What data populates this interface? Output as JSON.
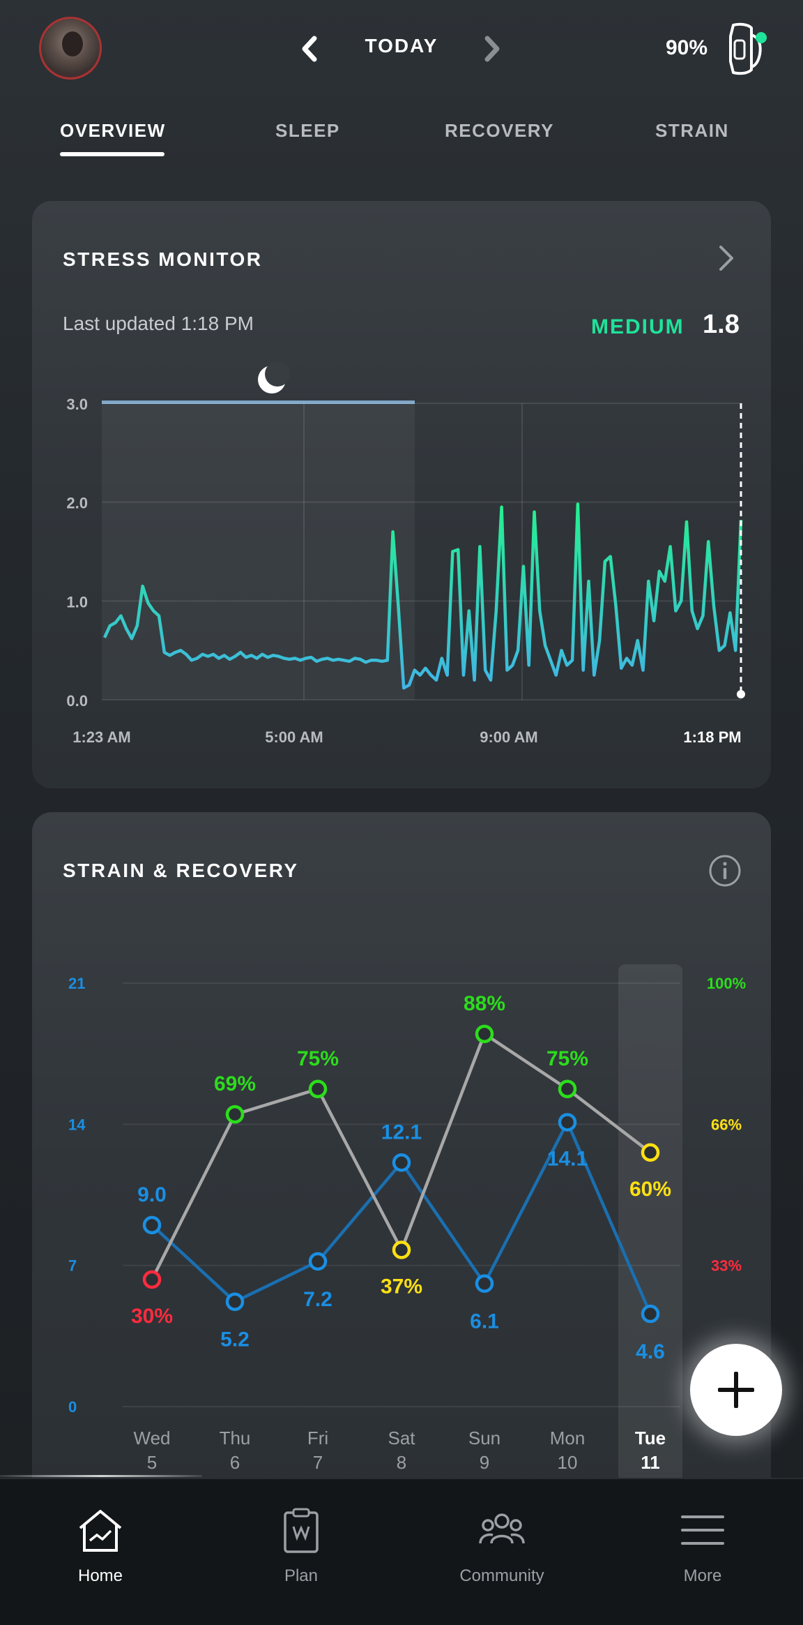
{
  "header": {
    "title": "TODAY",
    "battery": "90%"
  },
  "tabs": [
    {
      "label": "OVERVIEW",
      "active": true
    },
    {
      "label": "SLEEP",
      "active": false
    },
    {
      "label": "RECOVERY",
      "active": false
    },
    {
      "label": "STRAIN",
      "active": false
    }
  ],
  "stress": {
    "title": "STRESS MONITOR",
    "last_updated": "Last updated 1:18 PM",
    "level": "MEDIUM",
    "value": "1.8",
    "level_color": "#1fe39a",
    "chart_data": {
      "type": "line",
      "y_ticks": [
        "3.0",
        "2.0",
        "1.0",
        "0.0"
      ],
      "x_ticks": [
        "1:23 AM",
        "5:00 AM",
        "9:00 AM",
        "1:18 PM"
      ],
      "ylim": [
        0,
        3
      ],
      "sleep_band": {
        "from": "1:23 AM",
        "to": "7:40 AM"
      },
      "series": [
        {
          "values": [
            0.63,
            0.75,
            0.78,
            0.85,
            0.72,
            0.62,
            0.75,
            1.15,
            0.98,
            0.9,
            0.85,
            0.48,
            0.45,
            0.48,
            0.5,
            0.46,
            0.4,
            0.42,
            0.46,
            0.44,
            0.46,
            0.42,
            0.45,
            0.41,
            0.44,
            0.48,
            0.43,
            0.45,
            0.42,
            0.46,
            0.43,
            0.45,
            0.44,
            0.42,
            0.41,
            0.42,
            0.4,
            0.42,
            0.43,
            0.39,
            0.41,
            0.42,
            0.4,
            0.41,
            0.4,
            0.39,
            0.42,
            0.41,
            0.38,
            0.4,
            0.4,
            0.39,
            0.4,
            1.7,
            0.95,
            0.12,
            0.15,
            0.3,
            0.25,
            0.32,
            0.25,
            0.2,
            0.42,
            0.25,
            1.5,
            1.52,
            0.25,
            0.9,
            0.2,
            1.55,
            0.3,
            0.2,
            0.9,
            1.95,
            0.3,
            0.35,
            0.5,
            1.35,
            0.35,
            1.9,
            0.9,
            0.55,
            0.4,
            0.25,
            0.5,
            0.35,
            0.4,
            1.98,
            0.3,
            1.2,
            0.25,
            0.6,
            1.4,
            1.45,
            0.95,
            0.32,
            0.42,
            0.35,
            0.6,
            0.3,
            1.2,
            0.8,
            1.3,
            1.2,
            1.55,
            0.9,
            1.0,
            1.8,
            0.9,
            0.72,
            0.85,
            1.6,
            0.95,
            0.5,
            0.55,
            0.88,
            0.5,
            1.82
          ]
        }
      ]
    }
  },
  "strain_recovery": {
    "title": "STRAIN & RECOVERY",
    "chart_data": {
      "type": "line",
      "categories": [
        "Wed 5",
        "Thu 6",
        "Fri 7",
        "Sat 8",
        "Sun 9",
        "Mon 10",
        "Tue 11"
      ],
      "day_names": [
        "Wed",
        "Thu",
        "Fri",
        "Sat",
        "Sun",
        "Mon",
        "Tue"
      ],
      "day_numbers": [
        "5",
        "6",
        "7",
        "8",
        "9",
        "10",
        "11"
      ],
      "left_axis_ticks": [
        "21",
        "14",
        "7",
        "0"
      ],
      "right_axis_ticks": [
        "100%",
        "66%",
        "33%"
      ],
      "strain_ylim": [
        0,
        21
      ],
      "recovery_ylim": [
        0,
        100
      ],
      "selected_index": 6,
      "series": [
        {
          "values": [
            9.0,
            5.2,
            7.2,
            12.1,
            6.1,
            14.1,
            4.6
          ],
          "labels": [
            "9.0",
            "5.2",
            "7.2",
            "12.1",
            "6.1",
            "14.1",
            "4.6"
          ],
          "color": "#1a8fe3"
        },
        {
          "values": [
            30,
            69,
            75,
            37,
            88,
            75,
            60
          ],
          "labels": [
            "30%",
            "69%",
            "75%",
            "37%",
            "88%",
            "75%",
            "60%"
          ],
          "point_colors": [
            "#ff2b3e",
            "#2cdd1c",
            "#2cdd1c",
            "#ffe014",
            "#2cdd1c",
            "#2cdd1c",
            "#ffe014"
          ],
          "color": "#a8a8a8"
        }
      ]
    }
  },
  "bottom_nav": [
    {
      "label": "Home",
      "icon": "home-icon",
      "active": true
    },
    {
      "label": "Plan",
      "icon": "plan-icon",
      "active": false
    },
    {
      "label": "Community",
      "icon": "community-icon",
      "active": false
    },
    {
      "label": "More",
      "icon": "menu-icon",
      "active": false
    }
  ],
  "colors": {
    "green": "#2cdd1c",
    "yellow": "#ffe014",
    "red": "#ff2b3e",
    "blue": "#1a8fe3",
    "teal": "#1fe39a"
  }
}
